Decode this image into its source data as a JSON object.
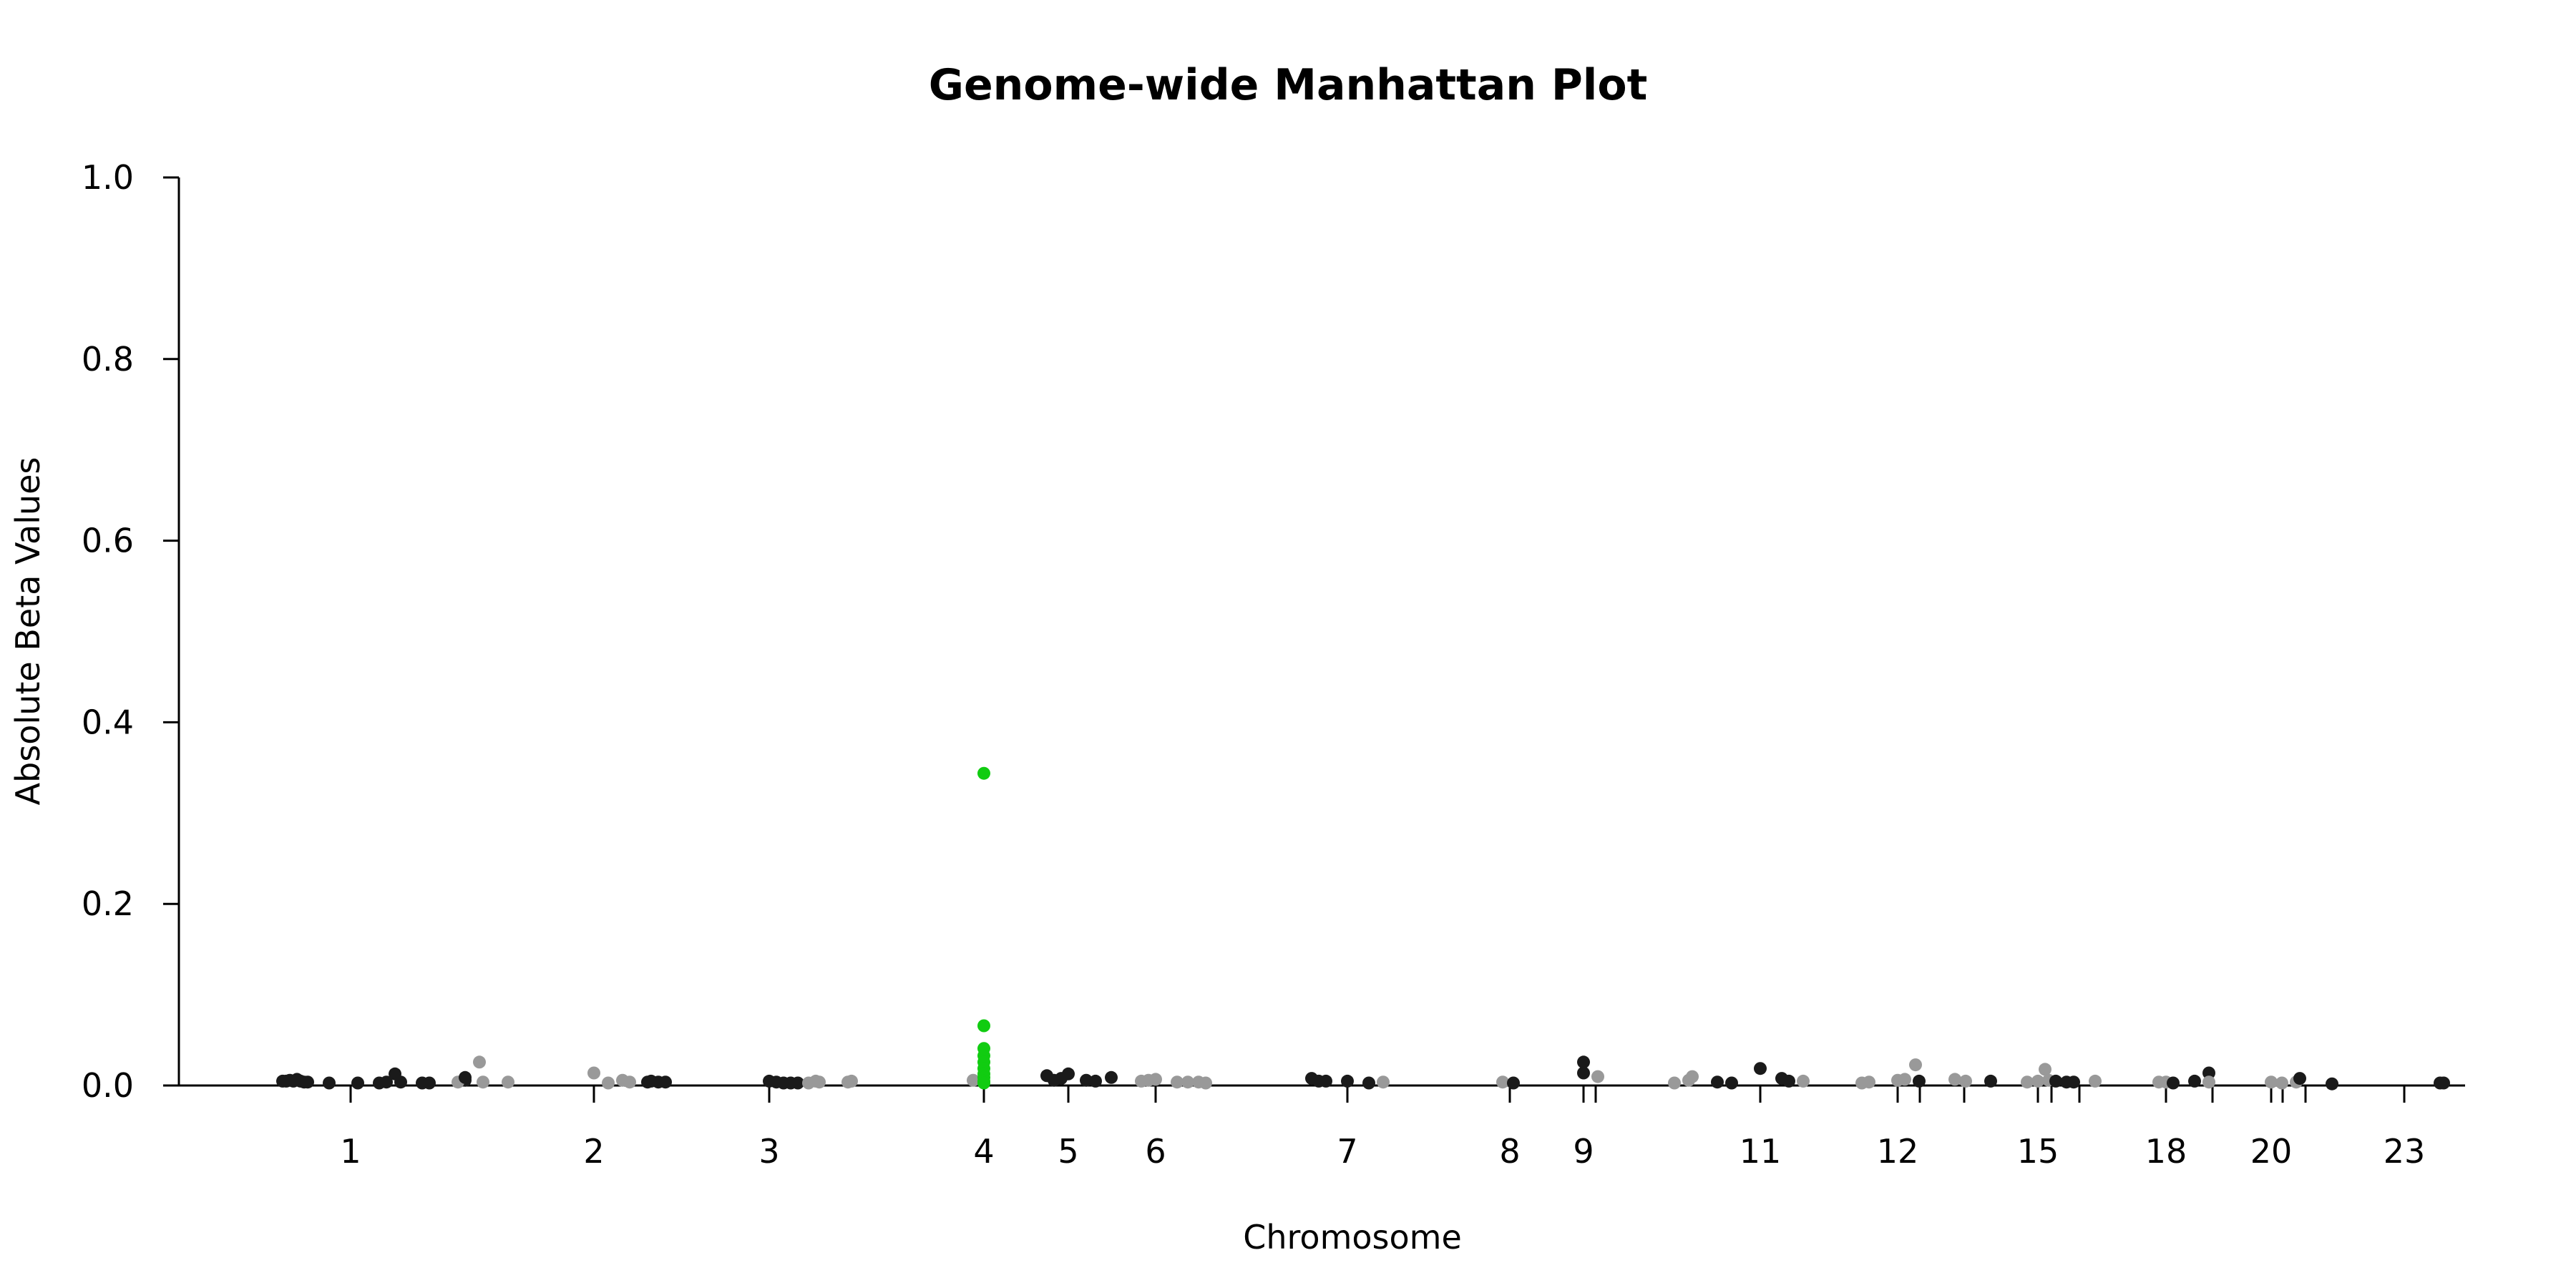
{
  "chart_data": {
    "type": "scatter",
    "title": "Genome-wide Manhattan Plot",
    "xlabel": "Chromosome",
    "ylabel": "Absolute Beta Values",
    "ylim": [
      0,
      1.0
    ],
    "yticks": [
      "0.0",
      "0.2",
      "0.4",
      "0.6",
      "0.8",
      "1.0"
    ],
    "xticks": [
      "1",
      "2",
      "3",
      "4",
      "5",
      "6",
      "7",
      "8",
      "9",
      "11",
      "12",
      "15",
      "18",
      "20",
      "23"
    ],
    "grid": false,
    "colors": {
      "dark": "#1a1a1a",
      "light": "#999999",
      "highlight": "#11cc11"
    },
    "points": [
      {
        "c": "1",
        "x": -0.95,
        "y": 0.004,
        "g": "dark"
      },
      {
        "c": "1",
        "x": -0.9,
        "y": 0.004,
        "g": "dark"
      },
      {
        "c": "1",
        "x": -0.85,
        "y": 0.005,
        "g": "dark"
      },
      {
        "c": "1",
        "x": -0.8,
        "y": 0.004,
        "g": "dark"
      },
      {
        "c": "1",
        "x": -0.75,
        "y": 0.006,
        "g": "dark"
      },
      {
        "c": "1",
        "x": -0.7,
        "y": 0.004,
        "g": "dark"
      },
      {
        "c": "1",
        "x": -0.65,
        "y": 0.003,
        "g": "dark"
      },
      {
        "c": "1",
        "x": -0.6,
        "y": 0.003,
        "g": "dark"
      },
      {
        "c": "1",
        "x": -0.3,
        "y": 0.002,
        "g": "dark"
      },
      {
        "c": "1",
        "x": 0.1,
        "y": 0.002,
        "g": "dark"
      },
      {
        "c": "1",
        "x": 0.4,
        "y": 0.002,
        "g": "dark"
      },
      {
        "c": "1",
        "x": 0.5,
        "y": 0.003,
        "g": "dark"
      },
      {
        "c": "1",
        "x": 0.62,
        "y": 0.012,
        "g": "dark"
      },
      {
        "c": "1",
        "x": 0.7,
        "y": 0.003,
        "g": "dark"
      },
      {
        "c": "1",
        "x": 1.0,
        "y": 0.002,
        "g": "dark"
      },
      {
        "c": "1",
        "x": 1.1,
        "y": 0.002,
        "g": "dark"
      },
      {
        "c": "1",
        "x": 1.6,
        "y": 0.005,
        "g": "dark"
      },
      {
        "c": "1",
        "x": 1.5,
        "y": 0.003,
        "g": "light"
      },
      {
        "c": "1",
        "x": 1.6,
        "y": 0.008,
        "g": "dark"
      },
      {
        "c": "1",
        "x": 1.8,
        "y": 0.025,
        "g": "light"
      },
      {
        "c": "1",
        "x": 1.85,
        "y": 0.003,
        "g": "light"
      },
      {
        "c": "1",
        "x": 2.2,
        "y": 0.003,
        "g": "light"
      },
      {
        "c": "2",
        "x": 0.0,
        "y": 0.013,
        "g": "light"
      },
      {
        "c": "2",
        "x": 0.2,
        "y": 0.002,
        "g": "light"
      },
      {
        "c": "2",
        "x": 0.4,
        "y": 0.005,
        "g": "light"
      },
      {
        "c": "2",
        "x": 0.5,
        "y": 0.003,
        "g": "light"
      },
      {
        "c": "2",
        "x": 0.75,
        "y": 0.003,
        "g": "dark"
      },
      {
        "c": "2",
        "x": 0.8,
        "y": 0.004,
        "g": "dark"
      },
      {
        "c": "2",
        "x": 0.9,
        "y": 0.003,
        "g": "dark"
      },
      {
        "c": "2",
        "x": 1.0,
        "y": 0.003,
        "g": "dark"
      },
      {
        "c": "3",
        "x": 0.0,
        "y": 0.004,
        "g": "dark"
      },
      {
        "c": "3",
        "x": 0.1,
        "y": 0.003,
        "g": "dark"
      },
      {
        "c": "3",
        "x": 0.2,
        "y": 0.002,
        "g": "dark"
      },
      {
        "c": "3",
        "x": 0.3,
        "y": 0.002,
        "g": "dark"
      },
      {
        "c": "3",
        "x": 0.4,
        "y": 0.002,
        "g": "dark"
      },
      {
        "c": "3",
        "x": 0.55,
        "y": 0.002,
        "g": "light"
      },
      {
        "c": "3",
        "x": 0.65,
        "y": 0.004,
        "g": "light"
      },
      {
        "c": "3",
        "x": 0.7,
        "y": 0.003,
        "g": "light"
      },
      {
        "c": "3",
        "x": 1.1,
        "y": 0.003,
        "g": "light"
      },
      {
        "c": "3",
        "x": 1.15,
        "y": 0.004,
        "g": "light"
      },
      {
        "c": "4",
        "x": -0.15,
        "y": 0.005,
        "g": "light"
      },
      {
        "c": "4",
        "x": 0.0,
        "y": 0.343,
        "g": "highlight"
      },
      {
        "c": "4",
        "x": 0.0,
        "y": 0.065,
        "g": "highlight"
      },
      {
        "c": "4",
        "x": 0.0,
        "y": 0.04,
        "g": "highlight"
      },
      {
        "c": "4",
        "x": 0.0,
        "y": 0.032,
        "g": "highlight"
      },
      {
        "c": "4",
        "x": 0.0,
        "y": 0.025,
        "g": "highlight"
      },
      {
        "c": "4",
        "x": 0.0,
        "y": 0.018,
        "g": "highlight"
      },
      {
        "c": "4",
        "x": 0.0,
        "y": 0.012,
        "g": "highlight"
      },
      {
        "c": "4",
        "x": 0.0,
        "y": 0.008,
        "g": "highlight"
      },
      {
        "c": "4",
        "x": 0.0,
        "y": 0.004,
        "g": "highlight"
      },
      {
        "c": "4",
        "x": 0.0,
        "y": 0.002,
        "g": "highlight"
      },
      {
        "c": "5",
        "x": -0.3,
        "y": 0.01,
        "g": "dark"
      },
      {
        "c": "5",
        "x": -0.2,
        "y": 0.005,
        "g": "dark"
      },
      {
        "c": "5",
        "x": -0.1,
        "y": 0.007,
        "g": "dark"
      },
      {
        "c": "5",
        "x": 0.0,
        "y": 0.012,
        "g": "dark"
      },
      {
        "c": "5",
        "x": 0.25,
        "y": 0.005,
        "g": "dark"
      },
      {
        "c": "5",
        "x": 0.38,
        "y": 0.004,
        "g": "dark"
      },
      {
        "c": "5",
        "x": 0.6,
        "y": 0.008,
        "g": "dark"
      },
      {
        "c": "6",
        "x": -0.2,
        "y": 0.004,
        "g": "light"
      },
      {
        "c": "6",
        "x": -0.1,
        "y": 0.005,
        "g": "light"
      },
      {
        "c": "6",
        "x": 0.0,
        "y": 0.006,
        "g": "light"
      },
      {
        "c": "6",
        "x": 0.3,
        "y": 0.003,
        "g": "light"
      },
      {
        "c": "6",
        "x": 0.45,
        "y": 0.003,
        "g": "light"
      },
      {
        "c": "6",
        "x": 0.6,
        "y": 0.003,
        "g": "light"
      },
      {
        "c": "6",
        "x": 0.7,
        "y": 0.002,
        "g": "light"
      },
      {
        "c": "7",
        "x": -0.5,
        "y": 0.007,
        "g": "dark"
      },
      {
        "c": "7",
        "x": -0.4,
        "y": 0.004,
        "g": "dark"
      },
      {
        "c": "7",
        "x": -0.3,
        "y": 0.004,
        "g": "dark"
      },
      {
        "c": "7",
        "x": 0.0,
        "y": 0.004,
        "g": "dark"
      },
      {
        "c": "7",
        "x": 0.3,
        "y": 0.002,
        "g": "dark"
      },
      {
        "c": "7",
        "x": 0.5,
        "y": 0.003,
        "g": "light"
      },
      {
        "c": "8",
        "x": -0.1,
        "y": 0.003,
        "g": "light"
      },
      {
        "c": "8",
        "x": 0.05,
        "y": 0.002,
        "g": "dark"
      },
      {
        "c": "9",
        "x": 0.0,
        "y": 0.025,
        "g": "dark"
      },
      {
        "c": "9",
        "x": 0.0,
        "y": 0.013,
        "g": "dark"
      },
      {
        "c": "9",
        "x": 0.2,
        "y": 0.009,
        "g": "light"
      },
      {
        "c": "11",
        "x": -1.2,
        "y": 0.002,
        "g": "light"
      },
      {
        "c": "11",
        "x": -1.0,
        "y": 0.005,
        "g": "light"
      },
      {
        "c": "11",
        "x": -0.95,
        "y": 0.009,
        "g": "light"
      },
      {
        "c": "11",
        "x": -0.6,
        "y": 0.003,
        "g": "dark"
      },
      {
        "c": "11",
        "x": -0.4,
        "y": 0.002,
        "g": "dark"
      },
      {
        "c": "11",
        "x": 0.0,
        "y": 0.018,
        "g": "dark"
      },
      {
        "c": "11",
        "x": 0.3,
        "y": 0.007,
        "g": "dark"
      },
      {
        "c": "11",
        "x": 0.4,
        "y": 0.004,
        "g": "dark"
      },
      {
        "c": "11",
        "x": 0.6,
        "y": 0.004,
        "g": "light"
      },
      {
        "c": "12",
        "x": -0.5,
        "y": 0.002,
        "g": "light"
      },
      {
        "c": "12",
        "x": -0.4,
        "y": 0.003,
        "g": "light"
      },
      {
        "c": "12",
        "x": 0.0,
        "y": 0.005,
        "g": "light"
      },
      {
        "c": "12",
        "x": 0.1,
        "y": 0.006,
        "g": "light"
      },
      {
        "c": "12",
        "x": 0.25,
        "y": 0.022,
        "g": "light"
      },
      {
        "c": "12",
        "x": 0.3,
        "y": 0.004,
        "g": "dark"
      },
      {
        "c": "12",
        "x": 0.8,
        "y": 0.006,
        "g": "light"
      },
      {
        "c": "12",
        "x": 0.95,
        "y": 0.004,
        "g": "light"
      },
      {
        "c": "12",
        "x": 1.3,
        "y": 0.004,
        "g": "dark"
      },
      {
        "c": "15",
        "x": -0.15,
        "y": 0.003,
        "g": "light"
      },
      {
        "c": "15",
        "x": 0.0,
        "y": 0.004,
        "g": "light"
      },
      {
        "c": "15",
        "x": 0.1,
        "y": 0.017,
        "g": "light"
      },
      {
        "c": "15",
        "x": 0.15,
        "y": 0.005,
        "g": "light"
      },
      {
        "c": "15",
        "x": 0.25,
        "y": 0.004,
        "g": "dark"
      },
      {
        "c": "15",
        "x": 0.4,
        "y": 0.003,
        "g": "dark"
      },
      {
        "c": "15",
        "x": 0.5,
        "y": 0.003,
        "g": "dark"
      },
      {
        "c": "15",
        "x": 0.8,
        "y": 0.004,
        "g": "light"
      },
      {
        "c": "18",
        "x": -0.1,
        "y": 0.003,
        "g": "light"
      },
      {
        "c": "18",
        "x": 0.0,
        "y": 0.003,
        "g": "light"
      },
      {
        "c": "18",
        "x": 0.1,
        "y": 0.002,
        "g": "dark"
      },
      {
        "c": "18",
        "x": 0.4,
        "y": 0.004,
        "g": "dark"
      },
      {
        "c": "18",
        "x": 0.6,
        "y": 0.013,
        "g": "dark"
      },
      {
        "c": "18",
        "x": 0.6,
        "y": 0.003,
        "g": "light"
      },
      {
        "c": "20",
        "x": 0.0,
        "y": 0.003,
        "g": "light"
      },
      {
        "c": "20",
        "x": 0.15,
        "y": 0.002,
        "g": "light"
      },
      {
        "c": "20",
        "x": 0.35,
        "y": 0.003,
        "g": "light"
      },
      {
        "c": "20",
        "x": 0.4,
        "y": 0.007,
        "g": "dark"
      },
      {
        "c": "20",
        "x": 0.85,
        "y": 0.001,
        "g": "dark"
      },
      {
        "c": "23",
        "x": 0.5,
        "y": 0.002,
        "g": "dark"
      },
      {
        "c": "23",
        "x": 0.55,
        "y": 0.002,
        "g": "dark"
      }
    ]
  }
}
